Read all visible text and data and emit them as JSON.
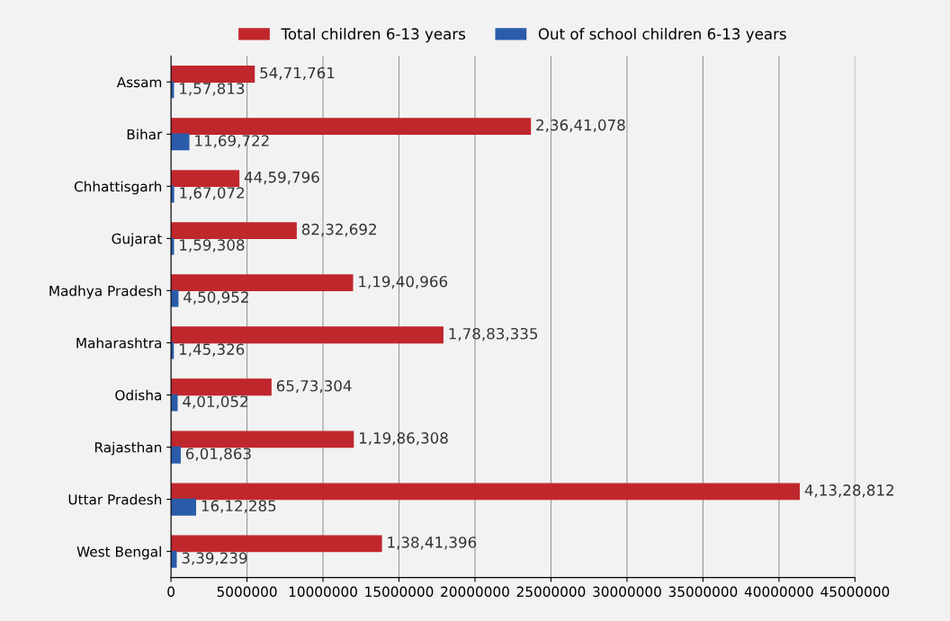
{
  "chart_data": {
    "type": "bar",
    "orientation": "horizontal",
    "categories": [
      "Assam",
      "Bihar",
      "Chhattisgarh",
      "Gujarat",
      "Madhya Pradesh",
      "Maharashtra",
      "Odisha",
      "Rajasthan",
      "Uttar Pradesh",
      "West Bengal"
    ],
    "series": [
      {
        "name": "Total children 6-13 years",
        "color": "#c0272d",
        "values": [
          5471761,
          23641078,
          4459796,
          8232692,
          11940966,
          17883335,
          6573304,
          11986308,
          41328812,
          13841396
        ],
        "value_labels": [
          "54,71,761",
          "2,36,41,078",
          "44,59,796",
          "82,32,692",
          "1,19,40,966",
          "1,78,83,335",
          "65,73,304",
          "1,19,86,308",
          "4,13,28,812",
          "1,38,41,396"
        ]
      },
      {
        "name": "Out of school children 6-13 years",
        "color": "#2a5caa",
        "values": [
          157813,
          1169722,
          167072,
          159308,
          450952,
          145326,
          401052,
          601863,
          1612285,
          339239
        ],
        "value_labels": [
          "1,57,813",
          "11,69,722",
          "1,67,072",
          "1,59,308",
          "4,50,952",
          "1,45,326",
          "4,01,052",
          "6,01,863",
          "16,12,285",
          "3,39,239"
        ]
      }
    ],
    "xlim": [
      0,
      45000000
    ],
    "xticks": [
      0,
      5000000,
      10000000,
      15000000,
      20000000,
      25000000,
      30000000,
      35000000,
      40000000,
      45000000
    ],
    "grid": "x",
    "legend": "top"
  }
}
